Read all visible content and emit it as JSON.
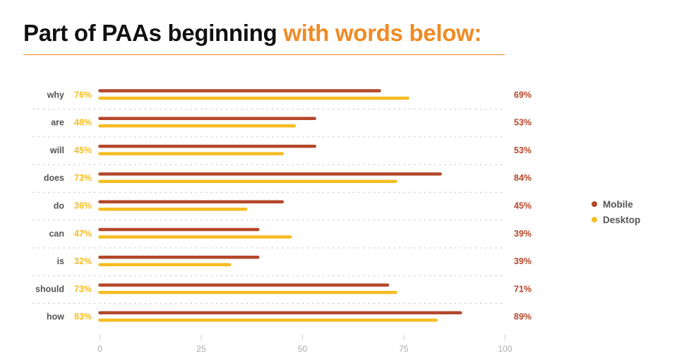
{
  "title": {
    "main": "Part of PAAs beginning",
    "accent": "with words below:"
  },
  "colors": {
    "mobile": "#b4472a",
    "desktop": "#f6bc22",
    "title_accent": "#f08a24",
    "category_label": "#555555",
    "tick_label": "#aaaaaa"
  },
  "legend": [
    {
      "name": "Mobile",
      "color": "#b4472a"
    },
    {
      "name": "Desktop",
      "color": "#f6bc22"
    }
  ],
  "chart_data": {
    "type": "bar",
    "orientation": "horizontal",
    "categories": [
      "why",
      "are",
      "will",
      "does",
      "do",
      "can",
      "is",
      "should",
      "how"
    ],
    "series": [
      {
        "name": "Mobile",
        "values": [
          69,
          53,
          53,
          84,
          45,
          39,
          39,
          71,
          89
        ],
        "labels": [
          "69%",
          "53%",
          "53%",
          "84%",
          "45%",
          "39%",
          "39%",
          "71%",
          "89%"
        ]
      },
      {
        "name": "Desktop",
        "values": [
          76,
          48,
          45,
          73,
          36,
          47,
          32,
          73,
          83
        ],
        "labels": [
          "76%",
          "48%",
          "45%",
          "73%",
          "36%",
          "47%",
          "32%",
          "73%",
          "83%"
        ]
      }
    ],
    "xlim": [
      0,
      100
    ],
    "xticks": [
      "0",
      "25",
      "50",
      "75",
      "100"
    ],
    "grid": "dotted separators between categories",
    "legend_position": "right"
  }
}
